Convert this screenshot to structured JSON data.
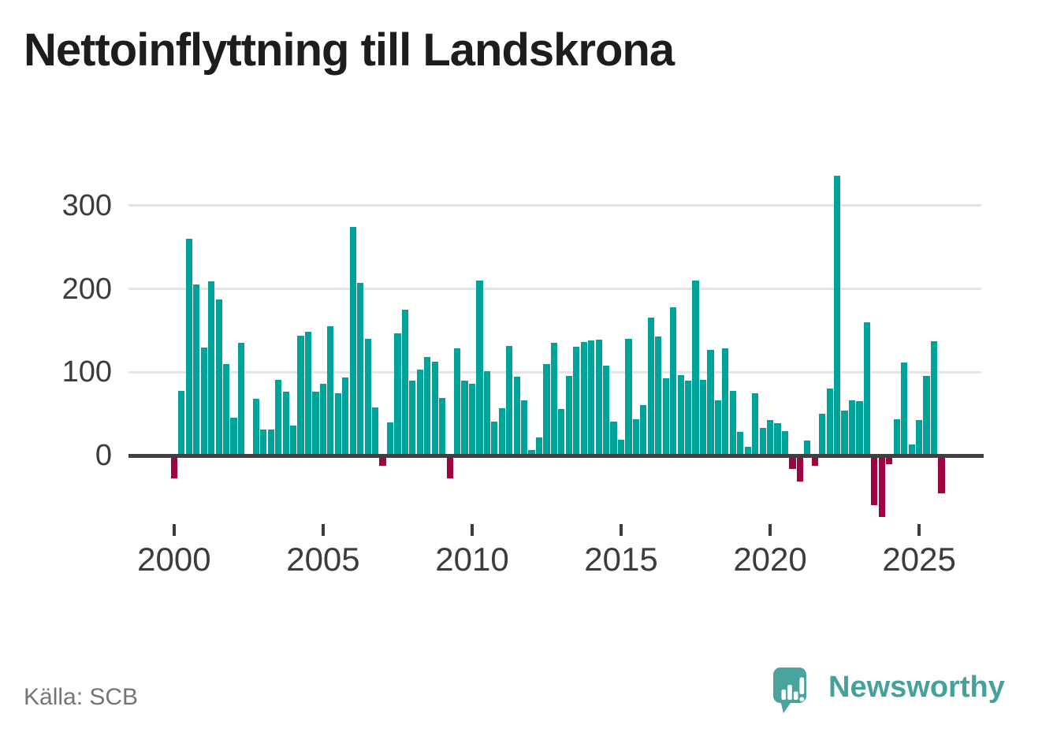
{
  "title": "Nettoinflyttning till Landskrona",
  "source": "Källa: SCB",
  "branding": {
    "logo_text": "Newsworthy",
    "logo_icon": "speech-bubble-bar-chart-exclamation",
    "logo_color": "#4aa49d",
    "logo_text_color": "#45a29a"
  },
  "chart_data": {
    "type": "bar",
    "title": "Nettoinflyttning till Landskrona",
    "frequency": "quarterly",
    "period_start": "2000 Q1",
    "period_end": "2025 Q4",
    "values": [
      -25,
      78,
      260,
      205,
      130,
      209,
      187,
      110,
      45,
      135,
      2,
      68,
      31,
      31,
      91,
      77,
      36,
      144,
      149,
      77,
      86,
      155,
      75,
      94,
      274,
      207,
      140,
      58,
      -10,
      40,
      147,
      175,
      90,
      103,
      118,
      113,
      69,
      -25,
      129,
      90,
      86,
      210,
      101,
      41,
      57,
      132,
      95,
      66,
      7,
      22,
      110,
      135,
      56,
      96,
      131,
      136,
      138,
      139,
      108,
      41,
      19,
      140,
      44,
      61,
      166,
      143,
      93,
      178,
      97,
      90,
      210,
      91,
      127,
      66,
      129,
      78,
      28,
      10,
      75,
      33,
      43,
      39,
      29,
      -14,
      -29,
      18,
      -10,
      50,
      80,
      336,
      54,
      66,
      65,
      160,
      -57,
      -71,
      -8,
      44,
      112,
      13,
      43,
      96,
      137,
      -43
    ],
    "yticks": [
      0,
      100,
      200,
      300
    ],
    "xticks": [
      2000,
      2005,
      2010,
      2015,
      2020,
      2025
    ],
    "ylim": [
      -80,
      345
    ],
    "grid": "horizontal",
    "legend": "none",
    "colors": {
      "positive": "#00a39a",
      "negative": "#a00341",
      "gridline": "#e4e4e4",
      "axis": "#404040",
      "tick_text": "#3c3c3c"
    }
  }
}
